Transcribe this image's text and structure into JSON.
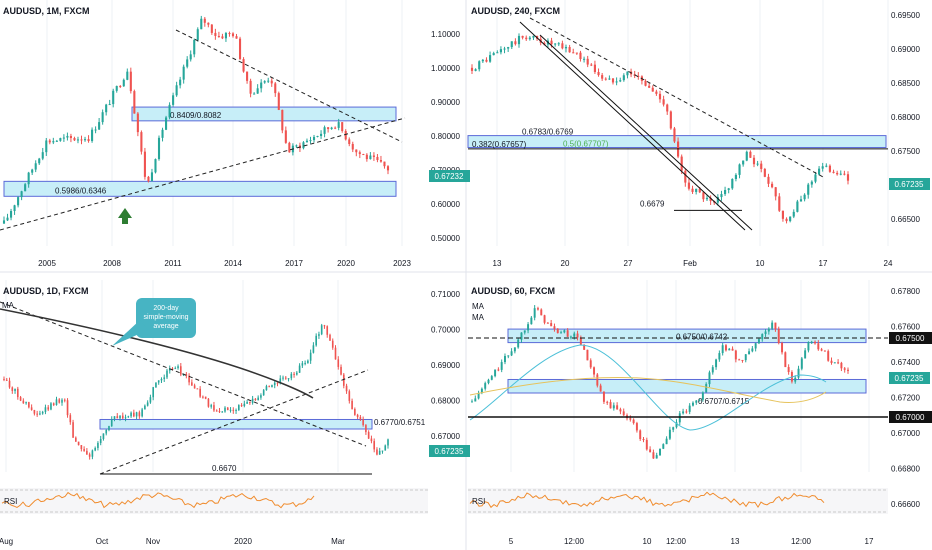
{
  "colors": {
    "up": "#26a69a",
    "down": "#ef5350",
    "zone_fill": "#c7eef8",
    "zone_stroke": "#5b6ad8",
    "grid": "#eef1f5",
    "text": "#131722",
    "rsi": "#f08c2e",
    "ma_blue": "#4cc0d8",
    "ma_yellow": "#e6c35c",
    "callout": "#47b4c3",
    "arrow": "#2e7d32"
  },
  "chart_data": [
    {
      "type": "candlestick",
      "title": "AUDUSD, 1M, FXCM",
      "x_ticks": [
        "2005",
        "2008",
        "2011",
        "2014",
        "2017",
        "2020",
        "2023"
      ],
      "y_ticks": [
        "1.10000",
        "1.00000",
        "0.90000",
        "0.80000",
        "0.70000",
        "0.60000",
        "0.50000"
      ],
      "ylim": [
        0.48,
        1.13
      ],
      "last_price": "0.67232",
      "zones": [
        {
          "label": "0.8409/0.8082",
          "low": 0.8082,
          "high": 0.8409
        },
        {
          "label": "0.5986/0.6346",
          "low": 0.5986,
          "high": 0.6346
        }
      ],
      "path": [
        [
          2002.0,
          0.52
        ],
        [
          2004.0,
          0.75
        ],
        [
          2006.0,
          0.76
        ],
        [
          2007.8,
          0.95
        ],
        [
          2008.7,
          0.62
        ],
        [
          2009.5,
          0.8
        ],
        [
          2010.5,
          0.96
        ],
        [
          2011.3,
          1.09
        ],
        [
          2012.0,
          1.04
        ],
        [
          2012.8,
          1.05
        ],
        [
          2013.5,
          0.88
        ],
        [
          2014.5,
          0.93
        ],
        [
          2015.3,
          0.72
        ],
        [
          2016.5,
          0.76
        ],
        [
          2017.6,
          0.8
        ],
        [
          2018.5,
          0.72
        ],
        [
          2019.5,
          0.69
        ],
        [
          2020.0,
          0.672
        ]
      ]
    },
    {
      "type": "candlestick",
      "title": "AUDUSD, 240, FXCM",
      "x_ticks": [
        "13",
        "20",
        "27",
        "Feb",
        "10",
        "17",
        "24"
      ],
      "y_ticks": [
        "0.69500",
        "0.69000",
        "0.68500",
        "0.68000",
        "0.67500",
        "0.67000",
        "0.66500"
      ],
      "ylim": [
        0.664,
        0.697
      ],
      "last_price": "0.67235",
      "zones": [
        {
          "label": "0.6783/0.6769",
          "low": 0.6769,
          "high": 0.6783
        }
      ],
      "levels": [
        {
          "label": "0.382(0.67657)",
          "value": 0.67657
        },
        {
          "label": "0.6679",
          "value": 0.6679
        }
      ],
      "annotations": [
        "0.5(0.67707)"
      ],
      "path": [
        [
          11.0,
          0.688
        ],
        [
          15.5,
          0.6925
        ],
        [
          17.5,
          0.6915
        ],
        [
          20.0,
          0.69
        ],
        [
          22.5,
          0.686
        ],
        [
          24.5,
          0.6875
        ],
        [
          27.5,
          0.683
        ],
        [
          28.0,
          0.679
        ],
        [
          29.0,
          0.672
        ],
        [
          30.5,
          0.67
        ],
        [
          31.5,
          0.6685
        ],
        [
          32.5,
          0.6705
        ],
        [
          34.5,
          0.676
        ],
        [
          36.5,
          0.6715
        ],
        [
          37.5,
          0.6665
        ],
        [
          38.5,
          0.668
        ],
        [
          40.5,
          0.674
        ],
        [
          42.0,
          0.6735
        ],
        [
          43.0,
          0.6722
        ]
      ]
    },
    {
      "type": "candlestick",
      "title": "AUDUSD, 1D, FXCM",
      "x_ticks": [
        "Aug",
        "Oct",
        "Nov",
        "2020",
        "Mar"
      ],
      "y_ticks": [
        "0.71000",
        "0.70000",
        "0.69000",
        "0.68000",
        "0.67000"
      ],
      "ylim": [
        0.666,
        0.7115
      ],
      "last_price": "0.67235",
      "zones": [
        {
          "label": "0.6770/0.6751",
          "low": 0.6751,
          "high": 0.677
        }
      ],
      "levels": [
        {
          "label": "0.6670",
          "value": 0.667
        }
      ],
      "indicators": [
        "MA",
        "RSI"
      ],
      "callout": "200-day simple-moving average",
      "path": [
        [
          0,
          0.6875
        ],
        [
          12,
          0.678
        ],
        [
          22,
          0.683
        ],
        [
          26,
          0.672
        ],
        [
          32,
          0.668
        ],
        [
          40,
          0.6775
        ],
        [
          50,
          0.6785
        ],
        [
          58,
          0.688
        ],
        [
          64,
          0.6905
        ],
        [
          72,
          0.684
        ],
        [
          78,
          0.679
        ],
        [
          90,
          0.681
        ],
        [
          98,
          0.686
        ],
        [
          106,
          0.688
        ],
        [
          112,
          0.692
        ],
        [
          118,
          0.702
        ],
        [
          124,
          0.69
        ],
        [
          128,
          0.681
        ],
        [
          134,
          0.674
        ],
        [
          138,
          0.668
        ],
        [
          142,
          0.6722
        ]
      ]
    },
    {
      "type": "candlestick",
      "title": "AUDUSD, 60, FXCM",
      "x_ticks": [
        "5",
        "12:00",
        "10",
        "12:00",
        "13",
        "12:00",
        "17"
      ],
      "y_ticks": [
        "0.67800",
        "0.67600",
        "0.67400",
        "0.67200",
        "0.67000",
        "0.66800",
        "0.66600"
      ],
      "ylim": [
        0.6657,
        0.6782
      ],
      "last_price": "0.67235",
      "marked_levels": [
        "0.67500",
        "0.67000"
      ],
      "zones": [
        {
          "label": "0.6750/0.6742",
          "low": 0.6742,
          "high": 0.675
        },
        {
          "label": "0.6707/0.6715",
          "low": 0.6707,
          "high": 0.6715
        }
      ],
      "indicators": [
        "MA",
        "MA",
        "RSI"
      ],
      "path": [
        [
          0,
          0.67
        ],
        [
          14,
          0.674
        ],
        [
          20,
          0.6765
        ],
        [
          26,
          0.675
        ],
        [
          34,
          0.6745
        ],
        [
          42,
          0.67
        ],
        [
          50,
          0.669
        ],
        [
          58,
          0.666
        ],
        [
          66,
          0.669
        ],
        [
          72,
          0.67
        ],
        [
          80,
          0.674
        ],
        [
          86,
          0.6728
        ],
        [
          92,
          0.6745
        ],
        [
          96,
          0.6755
        ],
        [
          102,
          0.6712
        ],
        [
          108,
          0.6745
        ],
        [
          114,
          0.673
        ],
        [
          120,
          0.6722
        ]
      ]
    }
  ]
}
